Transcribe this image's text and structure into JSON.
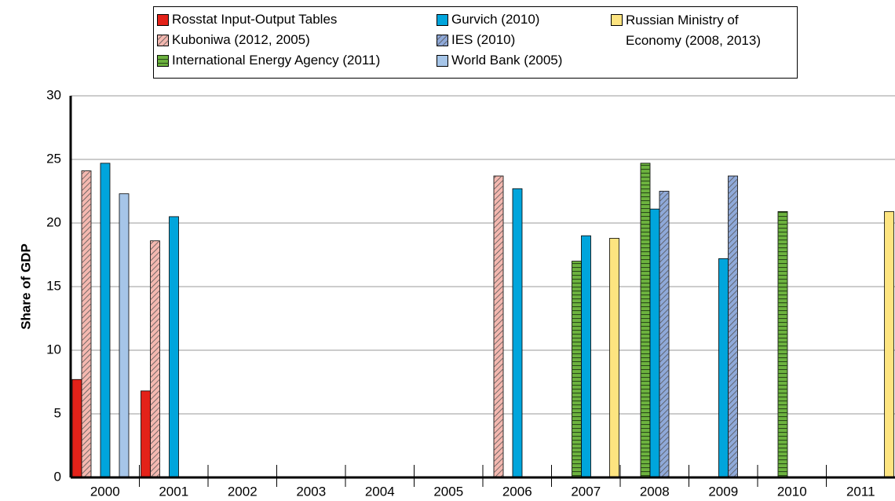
{
  "chart_data": {
    "type": "bar",
    "ylabel": "Share of GDP",
    "categories": [
      "2000",
      "2001",
      "2002",
      "2003",
      "2004",
      "2005",
      "2006",
      "2007",
      "2008",
      "2009",
      "2010",
      "2011"
    ],
    "series": [
      {
        "name": "Rosstat Input-Output Tables",
        "color": "#e32219",
        "pattern": null,
        "values": [
          7.7,
          6.8,
          null,
          null,
          null,
          null,
          null,
          null,
          null,
          null,
          null,
          null
        ]
      },
      {
        "name": "Kuboniwa (2012, 2005)",
        "color": "#f4b8b0",
        "pattern": "diagonal",
        "values": [
          24.1,
          18.6,
          null,
          null,
          null,
          null,
          23.7,
          null,
          null,
          null,
          null,
          null
        ]
      },
      {
        "name": "International Energy Agency (2011)",
        "color": "#6db33f",
        "pattern": "horizontal",
        "values": [
          null,
          null,
          null,
          null,
          null,
          null,
          null,
          17.0,
          24.7,
          null,
          20.9,
          null
        ]
      },
      {
        "name": "Gurvich (2010)",
        "color": "#00a5dc",
        "pattern": null,
        "values": [
          24.7,
          20.5,
          null,
          null,
          null,
          null,
          22.7,
          19.0,
          21.1,
          17.2,
          null,
          null
        ]
      },
      {
        "name": "IES (2010)",
        "color": "#8fa9d9",
        "pattern": "diagonal",
        "values": [
          null,
          null,
          null,
          null,
          null,
          null,
          null,
          null,
          22.5,
          23.7,
          null,
          null
        ]
      },
      {
        "name": "World Bank (2005)",
        "color": "#a6c5e8",
        "pattern": null,
        "values": [
          22.3,
          null,
          null,
          null,
          null,
          null,
          null,
          null,
          null,
          null,
          null,
          null
        ]
      },
      {
        "name": "Russian Ministry of Economy (2008, 2013)",
        "color": "#fde480",
        "pattern": null,
        "values": [
          null,
          null,
          null,
          null,
          null,
          null,
          null,
          18.8,
          null,
          null,
          null,
          20.9
        ]
      }
    ],
    "ylim": [
      0,
      30
    ],
    "yticks": [
      0,
      5,
      10,
      15,
      20,
      25,
      30
    ],
    "grid": true
  }
}
